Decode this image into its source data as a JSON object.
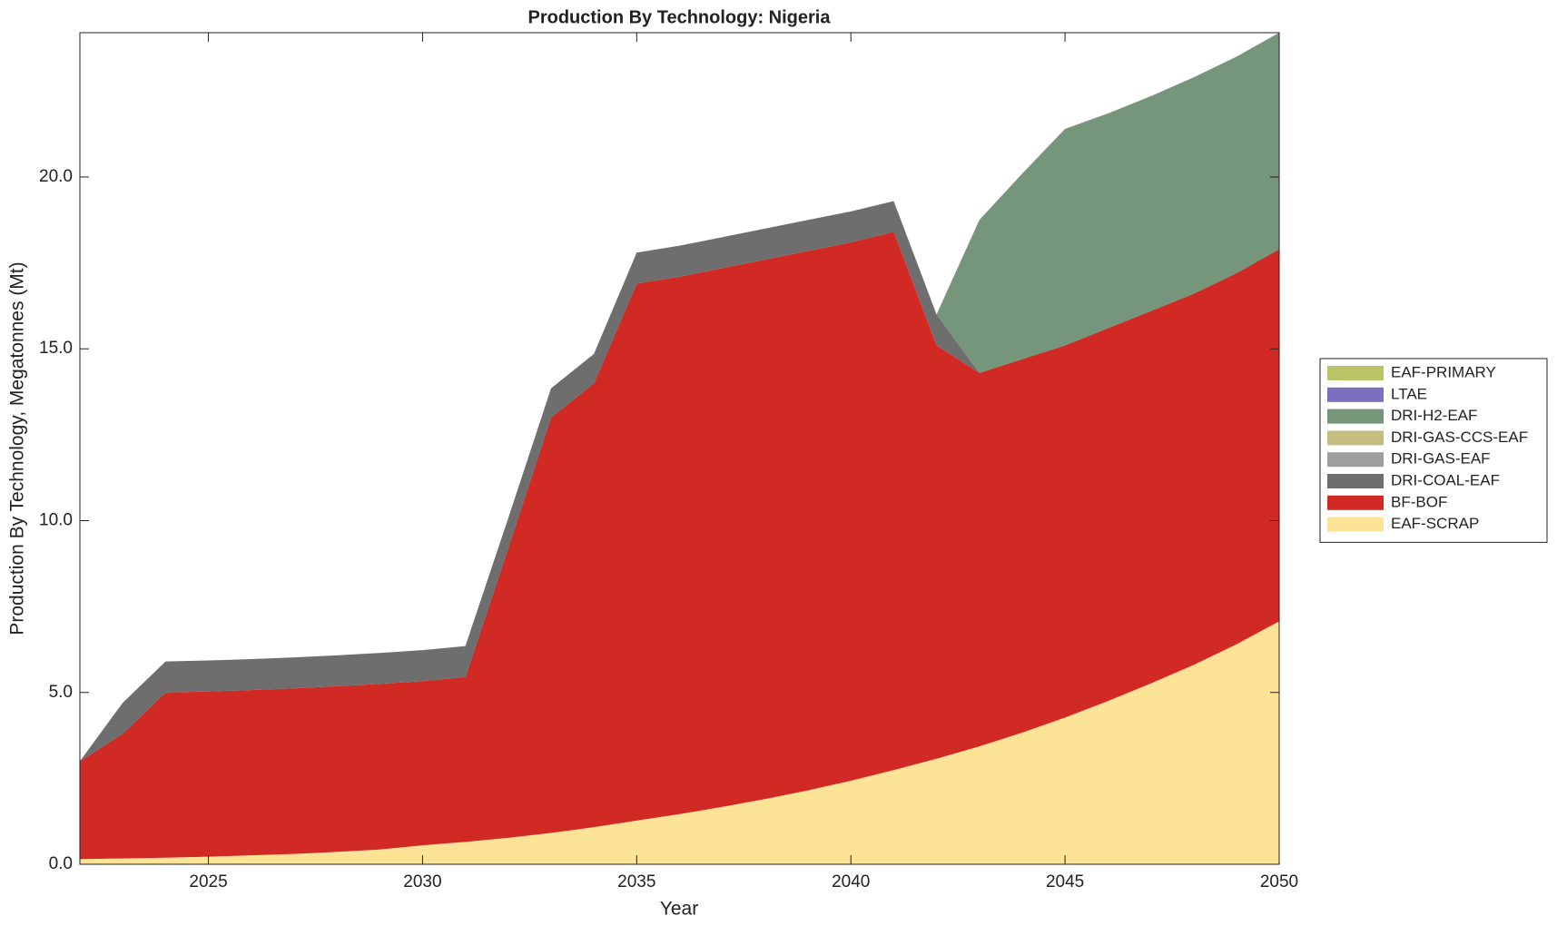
{
  "chart_data": {
    "type": "stacked-area",
    "title": "Production By Technology: Nigeria",
    "x_label": "Year",
    "y_label": "Production By Technology, Megatonnes (Mt)",
    "x": [
      2022,
      2023,
      2024,
      2025,
      2026,
      2027,
      2028,
      2029,
      2030,
      2031,
      2032,
      2033,
      2034,
      2035,
      2036,
      2037,
      2038,
      2039,
      2040,
      2041,
      2042,
      2043,
      2044,
      2045,
      2046,
      2047,
      2048,
      2049,
      2050
    ],
    "xlim": [
      2022,
      2050
    ],
    "xticks": [
      2025,
      2030,
      2035,
      2040,
      2045,
      2050
    ],
    "ylim": [
      0,
      24.2
    ],
    "yticks": [
      {
        "value": 0,
        "label": "0.0"
      },
      {
        "value": 5,
        "label": "5.0"
      },
      {
        "value": 10,
        "label": "10.0"
      },
      {
        "value": 15,
        "label": "15.0"
      },
      {
        "value": 20,
        "label": "20.0"
      }
    ],
    "legend": "right",
    "series": [
      {
        "name": "EAF-SCRAP",
        "color": "#fde396",
        "values": [
          0.15,
          0.17,
          0.19,
          0.22,
          0.26,
          0.3,
          0.36,
          0.43,
          0.55,
          0.65,
          0.77,
          0.91,
          1.08,
          1.27,
          1.46,
          1.67,
          1.9,
          2.15,
          2.43,
          2.74,
          3.07,
          3.43,
          3.83,
          4.27,
          4.75,
          5.26,
          5.8,
          6.4,
          7.07
        ]
      },
      {
        "name": "BF-BOF",
        "color": "#d12a24",
        "values": [
          2.85,
          3.63,
          4.81,
          4.81,
          4.81,
          4.82,
          4.82,
          4.82,
          4.78,
          4.8,
          8.43,
          12.09,
          12.92,
          15.63,
          15.64,
          15.68,
          15.7,
          15.7,
          15.67,
          15.66,
          12.03,
          10.87,
          10.87,
          10.83,
          10.85,
          10.84,
          10.8,
          10.8,
          10.83
        ]
      },
      {
        "name": "DRI-COAL-EAF",
        "color": "#6e6e6e",
        "values": [
          0,
          0.9,
          0.9,
          0.9,
          0.9,
          0.9,
          0.9,
          0.9,
          0.9,
          0.9,
          0.87,
          0.85,
          0.85,
          0.9,
          0.9,
          0.9,
          0.9,
          0.9,
          0.9,
          0.9,
          0.9,
          0,
          0,
          0,
          0,
          0,
          0,
          0,
          0
        ]
      },
      {
        "name": "DRI-GAS-EAF",
        "color": "#9e9e9e",
        "values": [
          0,
          0,
          0,
          0,
          0,
          0,
          0,
          0,
          0,
          0,
          0,
          0,
          0,
          0,
          0,
          0,
          0,
          0,
          0,
          0,
          0,
          0,
          0,
          0,
          0,
          0,
          0,
          0,
          0
        ]
      },
      {
        "name": "DRI-GAS-CCS-EAF",
        "color": "#c5bd80",
        "values": [
          0,
          0,
          0,
          0,
          0,
          0,
          0,
          0,
          0,
          0,
          0,
          0,
          0,
          0,
          0,
          0,
          0,
          0,
          0,
          0,
          0,
          0,
          0,
          0,
          0,
          0,
          0,
          0,
          0
        ]
      },
      {
        "name": "DRI-H2-EAF",
        "color": "#76967c",
        "values": [
          0,
          0,
          0,
          0,
          0,
          0,
          0,
          0,
          0,
          0,
          0,
          0,
          0,
          0,
          0,
          0,
          0,
          0,
          0,
          0,
          0,
          4.45,
          5.4,
          6.3,
          6.25,
          6.25,
          6.3,
          6.3,
          6.3
        ]
      },
      {
        "name": "LTAE",
        "color": "#7b6fbf",
        "values": [
          0,
          0,
          0,
          0,
          0,
          0,
          0,
          0,
          0,
          0,
          0,
          0,
          0,
          0,
          0,
          0,
          0,
          0,
          0,
          0,
          0,
          0,
          0,
          0,
          0,
          0,
          0,
          0,
          0
        ]
      },
      {
        "name": "EAF-PRIMARY",
        "color": "#bcc46a",
        "values": [
          0,
          0,
          0,
          0,
          0,
          0,
          0,
          0,
          0,
          0,
          0,
          0,
          0,
          0,
          0,
          0,
          0,
          0,
          0,
          0,
          0,
          0,
          0,
          0,
          0,
          0,
          0,
          0,
          0
        ]
      }
    ]
  }
}
